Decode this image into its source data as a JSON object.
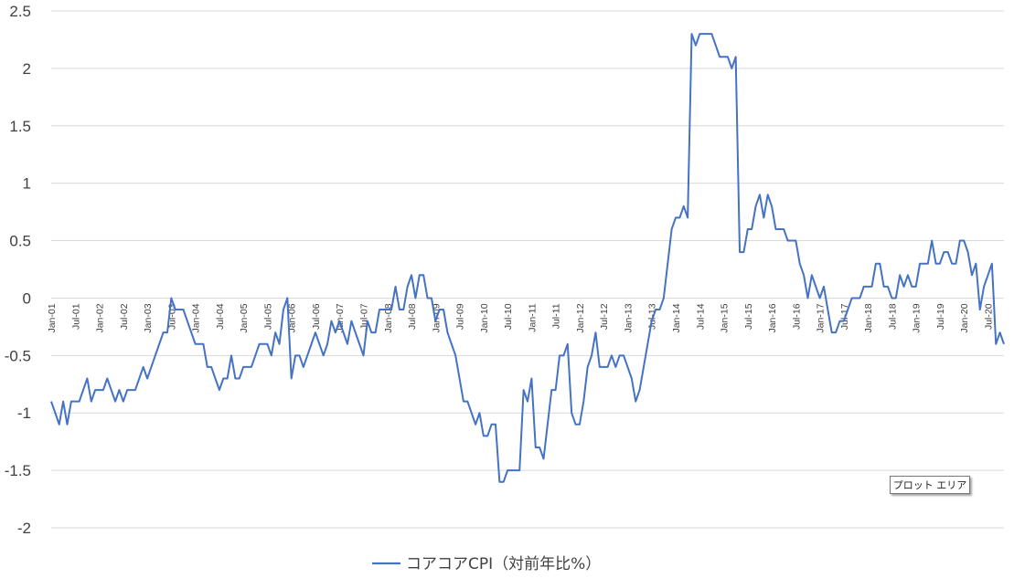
{
  "chart_data": {
    "type": "line",
    "title": "",
    "xlabel": "",
    "ylabel": "",
    "ylim": [
      -2,
      2.5
    ],
    "yticks": [
      2.5,
      2,
      1.5,
      1,
      0.5,
      0,
      -0.5,
      -1,
      -1.5,
      -2
    ],
    "ytick_labels": [
      "2.5",
      "2",
      "1.5",
      "1",
      "0.5",
      "0",
      "-0.5",
      "-1",
      "-1.5",
      "-2"
    ],
    "x_start": "2001-01",
    "x_tick_labels": [
      "Jan-01",
      "Jul-01",
      "Jan-02",
      "Jul-02",
      "Jan-03",
      "Jul-03",
      "Jan-04",
      "Jul-04",
      "Jan-05",
      "Jul-05",
      "Jan-06",
      "Jul-06",
      "Jan-07",
      "Jul-07",
      "Jan-08",
      "Jul-08",
      "Jan-09",
      "Jul-09",
      "Jan-10",
      "Jul-10",
      "Jan-11",
      "Jul-11",
      "Jan-12",
      "Jul-12",
      "Jan-13",
      "Jul-13",
      "Jan-14",
      "Jul-14",
      "Jan-15",
      "Jul-15",
      "Jan-16",
      "Jul-16",
      "Jan-17",
      "Jul-17",
      "Jan-18",
      "Jul-18",
      "Jan-19",
      "Jul-19",
      "Jan-20",
      "Jul-20"
    ],
    "grid": true,
    "legend_position": "bottom-center",
    "series": [
      {
        "name": "コアコアCPI（対前年比%）",
        "color": "#4472C4",
        "values": [
          -0.9,
          -1.0,
          -1.1,
          -0.9,
          -1.1,
          -0.9,
          -0.9,
          -0.9,
          -0.8,
          -0.7,
          -0.9,
          -0.8,
          -0.8,
          -0.8,
          -0.7,
          -0.8,
          -0.9,
          -0.8,
          -0.9,
          -0.8,
          -0.8,
          -0.8,
          -0.7,
          -0.6,
          -0.7,
          -0.6,
          -0.5,
          -0.4,
          -0.3,
          -0.3,
          0.0,
          -0.1,
          -0.1,
          -0.1,
          -0.2,
          -0.3,
          -0.4,
          -0.4,
          -0.4,
          -0.6,
          -0.6,
          -0.7,
          -0.8,
          -0.7,
          -0.7,
          -0.5,
          -0.7,
          -0.7,
          -0.6,
          -0.6,
          -0.6,
          -0.5,
          -0.4,
          -0.4,
          -0.4,
          -0.5,
          -0.3,
          -0.4,
          -0.1,
          0.0,
          -0.7,
          -0.5,
          -0.5,
          -0.6,
          -0.5,
          -0.4,
          -0.3,
          -0.4,
          -0.5,
          -0.4,
          -0.2,
          -0.3,
          -0.2,
          -0.3,
          -0.4,
          -0.2,
          -0.3,
          -0.4,
          -0.5,
          -0.2,
          -0.3,
          -0.3,
          -0.1,
          -0.1,
          -0.1,
          -0.1,
          0.1,
          -0.1,
          -0.1,
          0.1,
          0.2,
          0.0,
          0.2,
          0.2,
          0.0,
          0.0,
          -0.2,
          -0.1,
          -0.1,
          -0.3,
          -0.4,
          -0.5,
          -0.7,
          -0.9,
          -0.9,
          -1.0,
          -1.1,
          -1.0,
          -1.2,
          -1.2,
          -1.1,
          -1.1,
          -1.6,
          -1.6,
          -1.5,
          -1.5,
          -1.5,
          -1.5,
          -0.8,
          -0.9,
          -0.7,
          -1.3,
          -1.3,
          -1.4,
          -1.1,
          -0.8,
          -0.8,
          -0.5,
          -0.5,
          -0.4,
          -1.0,
          -1.1,
          -1.1,
          -0.9,
          -0.6,
          -0.5,
          -0.3,
          -0.6,
          -0.6,
          -0.6,
          -0.5,
          -0.6,
          -0.5,
          -0.5,
          -0.6,
          -0.7,
          -0.9,
          -0.8,
          -0.6,
          -0.4,
          -0.2,
          -0.1,
          -0.1,
          0.0,
          0.3,
          0.6,
          0.7,
          0.7,
          0.8,
          0.7,
          2.3,
          2.2,
          2.3,
          2.3,
          2.3,
          2.3,
          2.2,
          2.1,
          2.1,
          2.1,
          2.0,
          2.1,
          0.4,
          0.4,
          0.6,
          0.6,
          0.8,
          0.9,
          0.7,
          0.9,
          0.8,
          0.6,
          0.6,
          0.6,
          0.5,
          0.5,
          0.5,
          0.3,
          0.2,
          0.0,
          0.2,
          0.1,
          0.0,
          0.1,
          -0.1,
          -0.3,
          -0.3,
          -0.2,
          -0.2,
          -0.1,
          0.0,
          0.0,
          0.0,
          0.1,
          0.1,
          0.1,
          0.3,
          0.3,
          0.1,
          0.1,
          0.0,
          0.0,
          0.2,
          0.1,
          0.2,
          0.1,
          0.1,
          0.3,
          0.3,
          0.3,
          0.5,
          0.3,
          0.3,
          0.4,
          0.4,
          0.3,
          0.3,
          0.5,
          0.5,
          0.4,
          0.2,
          0.3,
          -0.1,
          0.1,
          0.2,
          0.3,
          -0.4,
          -0.3,
          -0.4
        ]
      }
    ]
  },
  "tooltip": {
    "label": "プロット エリア"
  }
}
